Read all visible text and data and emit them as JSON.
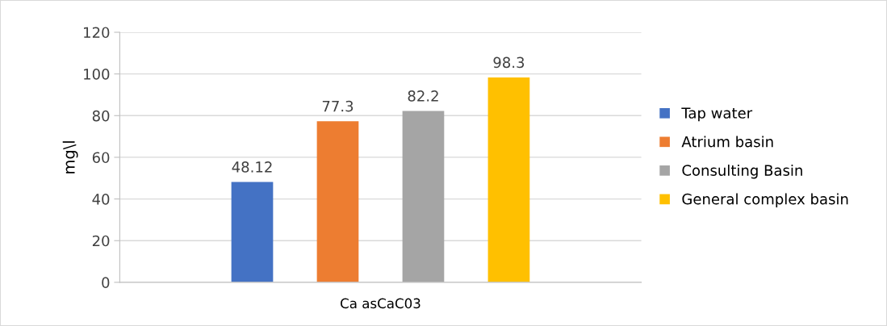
{
  "chart_data": {
    "type": "bar",
    "ylabel": "mg\\l",
    "categories": [
      "Ca asCaC03"
    ],
    "series": [
      {
        "name": "Tap water",
        "color": "#4472c4",
        "values": [
          48.12
        ]
      },
      {
        "name": "Atrium basin",
        "color": "#ed7d31",
        "values": [
          77.3
        ]
      },
      {
        "name": "Consulting Basin",
        "color": "#a5a5a5",
        "values": [
          82.2
        ]
      },
      {
        "name": "General complex basin",
        "color": "#ffc000",
        "values": [
          98.3
        ]
      }
    ],
    "ylim": [
      0,
      120
    ],
    "yticks": [
      0,
      20,
      40,
      60,
      80,
      100,
      120
    ],
    "grid": "y",
    "legend": "right",
    "data_labels": true
  }
}
